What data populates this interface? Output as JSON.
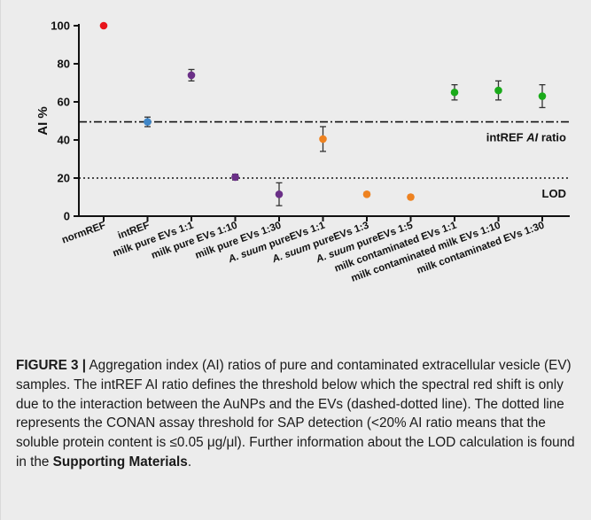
{
  "chart_data": {
    "type": "scatter",
    "ylabel": "AI %",
    "ylim": [
      0,
      100
    ],
    "yticks": [
      "0",
      "20",
      "40",
      "60",
      "80",
      "100"
    ],
    "ytick_values": [
      0,
      20,
      40,
      60,
      80,
      100
    ],
    "categories": [
      "normREF",
      "intREF",
      "milk pure EVs 1:1",
      "milk pure EVs 1:10",
      "milk pure EVs 1:30",
      "A. suum pureEVs 1:1",
      "A. suum pureEVs 1:3",
      "A. suum pureEVs 1:5",
      "milk contaminated EVs 1:1",
      "milk contaminated milk EVs 1:10",
      "milk contaminated EVs 1:30"
    ],
    "category_labels": [
      {
        "italic": "",
        "rest": "normREF"
      },
      {
        "italic": "",
        "rest": "intREF"
      },
      {
        "italic": "",
        "rest": "milk pure EVs 1:1"
      },
      {
        "italic": "",
        "rest": "milk pure EVs 1:10"
      },
      {
        "italic": "",
        "rest": "milk pure EVs 1:30"
      },
      {
        "italic": "A. suum",
        "rest": " pureEVs 1:1"
      },
      {
        "italic": "A. suum",
        "rest": " pureEVs 1:3"
      },
      {
        "italic": "A. suum",
        "rest": " pureEVs 1:5"
      },
      {
        "italic": "",
        "rest": "milk contaminated EVs 1:1"
      },
      {
        "italic": "",
        "rest": "milk contaminated milk EVs 1:10"
      },
      {
        "italic": "",
        "rest": "milk contaminated EVs 1:30"
      }
    ],
    "values": [
      100,
      49.5,
      74,
      20.5,
      11.5,
      40.5,
      11.5,
      10,
      65,
      66,
      63
    ],
    "errors": [
      0,
      2.5,
      3,
      1.5,
      6,
      6.5,
      1,
      1,
      4,
      5,
      6
    ],
    "colors": [
      "#e8141b",
      "#3f86c8",
      "#6a2f87",
      "#6a2f87",
      "#6a2f87",
      "#ee8220",
      "#ee8220",
      "#ee8220",
      "#1aaa1a",
      "#1aaa1a",
      "#1aaa1a"
    ],
    "reference_lines": [
      {
        "y": 49.5,
        "style": "dash-dot",
        "label_parts": {
          "pre": "intREF ",
          "italic": "AI",
          "post": " ratio"
        }
      },
      {
        "y": 20,
        "style": "dotted",
        "label_parts": {
          "pre": "LOD",
          "italic": "",
          "post": ""
        }
      }
    ],
    "grid": false,
    "legend": "none"
  },
  "caption": {
    "label": "FIGURE 3 |",
    "text": " Aggregation index (AI) ratios of pure and contaminated extracellular vesicle (EV) samples. The intREF AI ratio defines the threshold below which the spectral red shift is only due to the interaction between the AuNPs and the EVs (dashed-dotted line). The dotted line represents the CONAN assay threshold for SAP detection (<20% AI ratio means that the soluble protein content is ≤0.05 μg/μl). Further information about the LOD calculation is found in the ",
    "bold_tail": "Supporting Materials",
    "end": "."
  }
}
